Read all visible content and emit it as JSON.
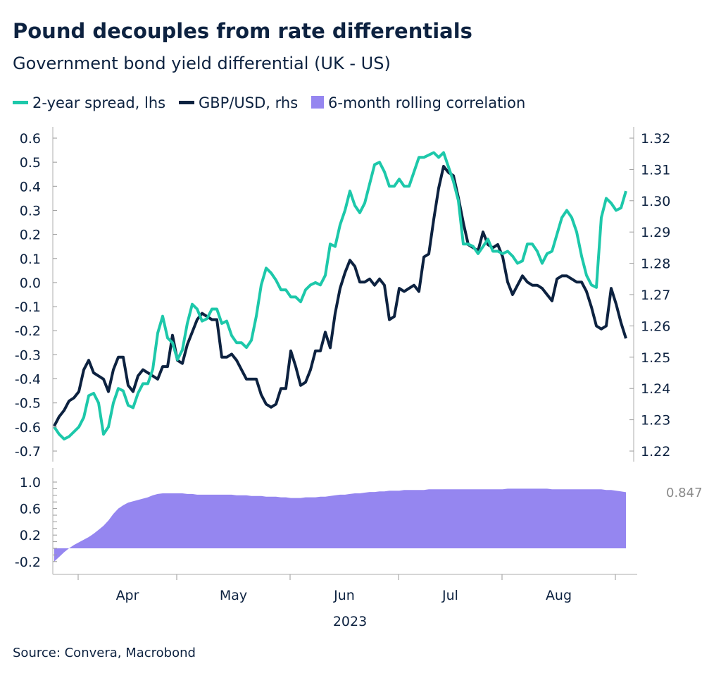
{
  "title": "Pound decouples from rate differentials",
  "subtitle": "Government bond yield differential (UK - US)",
  "source": "Source: Convera, Macrobond",
  "colors": {
    "spread": "#1dc8aa",
    "gbpusd": "#0d2240",
    "correlation": "#9586f0"
  },
  "chart_data": [
    {
      "type": "line",
      "legend": [
        "2-year spread, lhs",
        "GBP/USD, rhs",
        "6-month rolling correlation"
      ],
      "legend_placement": "top-left",
      "x_labels": [
        "Apr",
        "May",
        "Jun",
        "Jul",
        "Aug"
      ],
      "x_year_label": "2023",
      "y_left": {
        "ticks": [
          "0.6",
          "0.5",
          "0.4",
          "0.3",
          "0.2",
          "0.1",
          "0.0",
          "-0.1",
          "-0.2",
          "-0.3",
          "-0.4",
          "-0.5",
          "-0.6",
          "-0.7"
        ],
        "range": [
          -0.72,
          0.64
        ]
      },
      "y_right": {
        "ticks": [
          "1.32",
          "1.31",
          "1.30",
          "1.29",
          "1.28",
          "1.27",
          "1.26",
          "1.25",
          "1.24",
          "1.23",
          "1.22"
        ],
        "range": [
          1.2191,
          1.3209
        ]
      },
      "grid": false,
      "dates": [
        "2023-03-27",
        "2023-03-28",
        "2023-03-29",
        "2023-03-30",
        "2023-03-31",
        "2023-04-03",
        "2023-04-04",
        "2023-04-05",
        "2023-04-06",
        "2023-04-07",
        "2023-04-10",
        "2023-04-11",
        "2023-04-12",
        "2023-04-13",
        "2023-04-14",
        "2023-04-17",
        "2023-04-18",
        "2023-04-19",
        "2023-04-20",
        "2023-04-21",
        "2023-04-24",
        "2023-04-25",
        "2023-04-26",
        "2023-04-27",
        "2023-04-28",
        "2023-05-01",
        "2023-05-02",
        "2023-05-03",
        "2023-05-04",
        "2023-05-05",
        "2023-05-08",
        "2023-05-09",
        "2023-05-10",
        "2023-05-11",
        "2023-05-12",
        "2023-05-15",
        "2023-05-16",
        "2023-05-17",
        "2023-05-18",
        "2023-05-19",
        "2023-05-22",
        "2023-05-23",
        "2023-05-24",
        "2023-05-25",
        "2023-05-26",
        "2023-05-29",
        "2023-05-30",
        "2023-05-31",
        "2023-06-01",
        "2023-06-02",
        "2023-06-05",
        "2023-06-06",
        "2023-06-07",
        "2023-06-08",
        "2023-06-09",
        "2023-06-12",
        "2023-06-13",
        "2023-06-14",
        "2023-06-15",
        "2023-06-16",
        "2023-06-19",
        "2023-06-20",
        "2023-06-21",
        "2023-06-22",
        "2023-06-23",
        "2023-06-26",
        "2023-06-27",
        "2023-06-28",
        "2023-06-29",
        "2023-06-30",
        "2023-07-03",
        "2023-07-04",
        "2023-07-05",
        "2023-07-06",
        "2023-07-07",
        "2023-07-10",
        "2023-07-11",
        "2023-07-12",
        "2023-07-13",
        "2023-07-14",
        "2023-07-17",
        "2023-07-18",
        "2023-07-19",
        "2023-07-20",
        "2023-07-21",
        "2023-07-24",
        "2023-07-25",
        "2023-07-26",
        "2023-07-27",
        "2023-07-28",
        "2023-07-31",
        "2023-08-01",
        "2023-08-02",
        "2023-08-03",
        "2023-08-04",
        "2023-08-07",
        "2023-08-08",
        "2023-08-09",
        "2023-08-10",
        "2023-08-11",
        "2023-08-14",
        "2023-08-15",
        "2023-08-16",
        "2023-08-17",
        "2023-08-18",
        "2023-08-21",
        "2023-08-22",
        "2023-08-23",
        "2023-08-24",
        "2023-08-25",
        "2023-08-28",
        "2023-08-29",
        "2023-08-30",
        "2023-08-31",
        "2023-09-01",
        "2023-09-04",
        "2023-09-05"
      ],
      "series": [
        {
          "name": "2-year spread, lhs",
          "axis": "left",
          "values": [
            -0.6,
            -0.63,
            -0.65,
            -0.64,
            -0.62,
            -0.6,
            -0.56,
            -0.47,
            -0.46,
            -0.5,
            -0.63,
            -0.6,
            -0.5,
            -0.44,
            -0.45,
            -0.51,
            -0.52,
            -0.46,
            -0.42,
            -0.42,
            -0.36,
            -0.21,
            -0.14,
            -0.23,
            -0.25,
            -0.32,
            -0.28,
            -0.17,
            -0.09,
            -0.11,
            -0.16,
            -0.15,
            -0.11,
            -0.11,
            -0.17,
            -0.16,
            -0.22,
            -0.25,
            -0.25,
            -0.27,
            -0.24,
            -0.14,
            -0.01,
            0.06,
            0.04,
            0.01,
            -0.03,
            -0.03,
            -0.06,
            -0.06,
            -0.08,
            -0.03,
            -0.01,
            0.0,
            -0.01,
            0.03,
            0.16,
            0.15,
            0.24,
            0.3,
            0.38,
            0.32,
            0.29,
            0.33,
            0.41,
            0.49,
            0.5,
            0.46,
            0.4,
            0.4,
            0.43,
            0.4,
            0.4,
            0.46,
            0.52,
            0.52,
            0.53,
            0.54,
            0.52,
            0.54,
            0.48,
            0.42,
            0.34,
            0.16,
            0.16,
            0.15,
            0.12,
            0.15,
            0.18,
            0.13,
            0.13,
            0.12,
            0.13,
            0.11,
            0.08,
            0.09,
            0.16,
            0.16,
            0.13,
            0.08,
            0.12,
            0.13,
            0.2,
            0.27,
            0.3,
            0.27,
            0.21,
            0.11,
            0.03,
            -0.01,
            -0.02,
            0.27,
            0.35,
            0.33,
            0.3,
            0.31,
            0.38
          ]
        },
        {
          "name": "GBP/USD, rhs",
          "axis": "right",
          "values": [
            1.228,
            1.231,
            1.233,
            1.236,
            1.237,
            1.239,
            1.246,
            1.249,
            1.245,
            1.244,
            1.243,
            1.239,
            1.246,
            1.25,
            1.25,
            1.241,
            1.239,
            1.244,
            1.246,
            1.245,
            1.244,
            1.243,
            1.247,
            1.247,
            1.257,
            1.249,
            1.248,
            1.254,
            1.258,
            1.262,
            1.264,
            1.263,
            1.262,
            1.262,
            1.25,
            1.25,
            1.251,
            1.249,
            1.246,
            1.243,
            1.243,
            1.243,
            1.238,
            1.235,
            1.234,
            1.235,
            1.24,
            1.24,
            1.252,
            1.247,
            1.241,
            1.242,
            1.246,
            1.252,
            1.252,
            1.258,
            1.253,
            1.264,
            1.272,
            1.277,
            1.281,
            1.279,
            1.274,
            1.274,
            1.275,
            1.273,
            1.275,
            1.273,
            1.262,
            1.263,
            1.272,
            1.271,
            1.272,
            1.273,
            1.271,
            1.282,
            1.283,
            1.294,
            1.304,
            1.311,
            1.309,
            1.308,
            1.301,
            1.293,
            1.286,
            1.285,
            1.284,
            1.29,
            1.286,
            1.285,
            1.286,
            1.282,
            1.274,
            1.27,
            1.273,
            1.276,
            1.274,
            1.273,
            1.273,
            1.272,
            1.27,
            1.268,
            1.275,
            1.276,
            1.276,
            1.275,
            1.274,
            1.274,
            1.271,
            1.266,
            1.26,
            1.259,
            1.26,
            1.272,
            1.267,
            1.261,
            1.256
          ]
        }
      ]
    },
    {
      "type": "area",
      "series": [
        {
          "name": "6-month rolling correlation",
          "values": [
            -0.2,
            -0.13,
            -0.06,
            0.0,
            0.05,
            0.09,
            0.13,
            0.17,
            0.22,
            0.28,
            0.34,
            0.42,
            0.52,
            0.6,
            0.65,
            0.69,
            0.71,
            0.73,
            0.75,
            0.77,
            0.8,
            0.82,
            0.83,
            0.83,
            0.83,
            0.83,
            0.83,
            0.82,
            0.82,
            0.81,
            0.81,
            0.81,
            0.81,
            0.81,
            0.81,
            0.81,
            0.81,
            0.8,
            0.8,
            0.8,
            0.79,
            0.79,
            0.79,
            0.78,
            0.78,
            0.78,
            0.77,
            0.77,
            0.76,
            0.76,
            0.76,
            0.77,
            0.77,
            0.77,
            0.78,
            0.78,
            0.79,
            0.8,
            0.81,
            0.81,
            0.82,
            0.83,
            0.83,
            0.84,
            0.85,
            0.85,
            0.86,
            0.86,
            0.87,
            0.87,
            0.87,
            0.88,
            0.88,
            0.88,
            0.88,
            0.88,
            0.89,
            0.89,
            0.89,
            0.89,
            0.89,
            0.89,
            0.89,
            0.89,
            0.89,
            0.89,
            0.89,
            0.89,
            0.89,
            0.89,
            0.89,
            0.89,
            0.9,
            0.9,
            0.9,
            0.9,
            0.9,
            0.9,
            0.9,
            0.9,
            0.9,
            0.89,
            0.89,
            0.89,
            0.89,
            0.89,
            0.89,
            0.89,
            0.89,
            0.89,
            0.89,
            0.89,
            0.88,
            0.88,
            0.87,
            0.86,
            0.847
          ]
        }
      ],
      "y_ticks": [
        "1.0",
        "0.6",
        "0.2",
        "-0.2"
      ],
      "y_range": [
        -0.3,
        1.1
      ],
      "last_value_label": "0.847"
    }
  ]
}
